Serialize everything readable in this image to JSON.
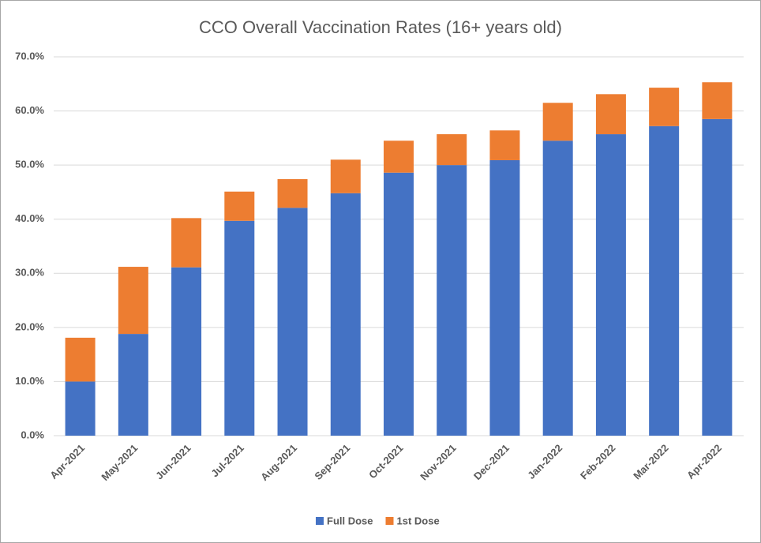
{
  "chart_data": {
    "type": "stacked_bar",
    "title": "CCO Overall Vaccination Rates (16+ years old)",
    "categories": [
      "Apr-2021",
      "May-2021",
      "Jun-2021",
      "Jul-2021",
      "Aug-2021",
      "Sep-2021",
      "Oct-2021",
      "Nov-2021",
      "Dec-2021",
      "Jan-2022",
      "Feb-2022",
      "Mar-2022",
      "Apr-2022"
    ],
    "series": [
      {
        "name": "Full Dose",
        "color": "#4472c4",
        "values": [
          10.0,
          18.8,
          31.1,
          39.7,
          42.1,
          44.8,
          48.6,
          50.0,
          50.9,
          54.5,
          55.7,
          57.2,
          58.5
        ]
      },
      {
        "name": "1st Dose",
        "color": "#ed7d31",
        "values": [
          8.1,
          12.4,
          9.1,
          5.4,
          5.3,
          6.2,
          5.9,
          5.7,
          5.5,
          7.0,
          7.4,
          7.1,
          6.8
        ]
      }
    ],
    "ylim": [
      0,
      70
    ],
    "yticks": [
      {
        "value": 0,
        "label": "0.0%"
      },
      {
        "value": 10,
        "label": "10.0%"
      },
      {
        "value": 20,
        "label": "20.0%"
      },
      {
        "value": 30,
        "label": "30.0%"
      },
      {
        "value": 40,
        "label": "40.0%"
      },
      {
        "value": 50,
        "label": "50.0%"
      },
      {
        "value": 60,
        "label": "60.0%"
      },
      {
        "value": 70,
        "label": "70.0%"
      }
    ],
    "grid": true,
    "legend": "bottom"
  }
}
